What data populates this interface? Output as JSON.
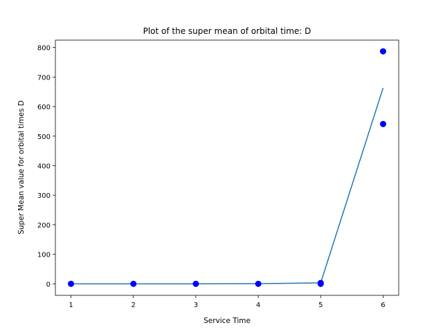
{
  "chart_data": {
    "type": "line",
    "title": "Plot of the super mean of orbital time: D",
    "xlabel": "Service Time",
    "ylabel": "Super Mean value for orbital times D",
    "xlim": [
      0.75,
      6.25
    ],
    "ylim": [
      -39,
      825
    ],
    "xticks": [
      1,
      2,
      3,
      4,
      5,
      6
    ],
    "yticks": [
      0,
      100,
      200,
      300,
      400,
      500,
      600,
      700,
      800
    ],
    "grid": false,
    "legend": "none",
    "series": [
      {
        "type": "line",
        "color": "#1f77b4",
        "x": [
          1,
          2,
          3,
          4,
          5,
          6
        ],
        "y": [
          0,
          0,
          0,
          0.5,
          3,
          663
        ]
      },
      {
        "type": "scatter",
        "color": "#0000ff",
        "x": [
          1,
          2,
          3,
          4,
          5,
          5,
          6,
          6
        ],
        "y": [
          0,
          0,
          0,
          0,
          0,
          3,
          787,
          541
        ]
      }
    ]
  }
}
